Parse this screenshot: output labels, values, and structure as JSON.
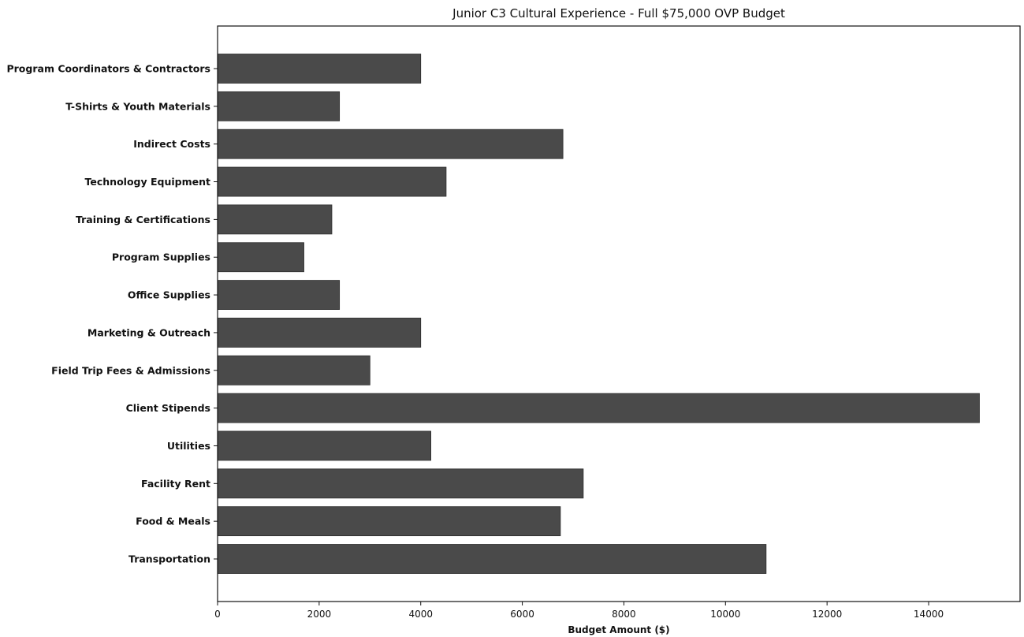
{
  "chart_data": {
    "type": "bar",
    "orientation": "horizontal",
    "title": "Junior C3 Cultural Experience - Full $75,000 OVP Budget",
    "xlabel": "Budget Amount ($)",
    "ylabel": "",
    "xlim": [
      0,
      15800
    ],
    "xticks": [
      0,
      2000,
      4000,
      6000,
      8000,
      10000,
      12000,
      14000
    ],
    "xtick_labels": [
      "0",
      "2000",
      "4000",
      "6000",
      "8000",
      "10000",
      "12000",
      "14000"
    ],
    "grid": false,
    "bar_color": "#4a4a4a",
    "categories": [
      "Program Coordinators & Contractors",
      "T-Shirts & Youth Materials",
      "Indirect Costs",
      "Technology Equipment",
      "Training & Certifications",
      "Program Supplies",
      "Office Supplies",
      "Marketing & Outreach",
      "Field Trip Fees & Admissions",
      "Client Stipends",
      "Utilities",
      "Facility Rent",
      "Food & Meals",
      "Transportation"
    ],
    "values": [
      4000,
      2400,
      6800,
      4500,
      2250,
      1700,
      2400,
      4000,
      3000,
      15000,
      4200,
      7200,
      6750,
      10800
    ]
  }
}
